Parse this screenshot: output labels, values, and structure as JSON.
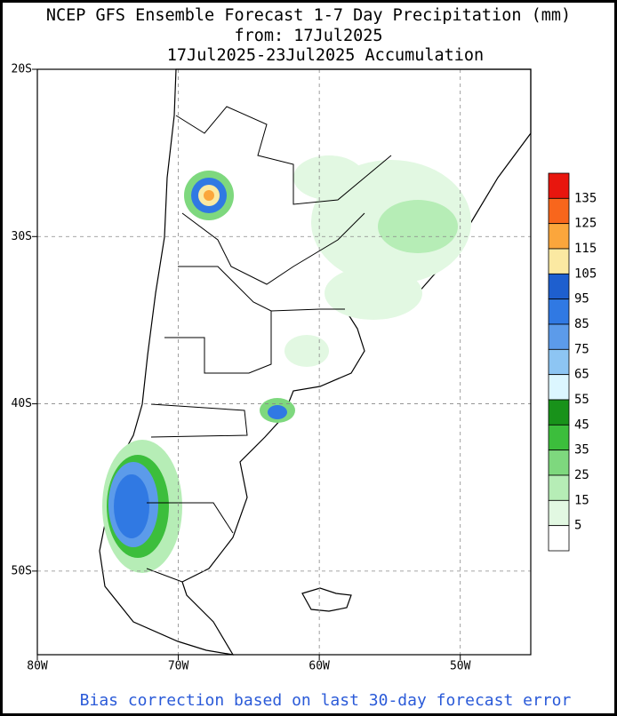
{
  "header": {
    "title": "NCEP GFS Ensemble Forecast 1-7 Day Precipitation (mm)",
    "subtitle": "from: 17Jul2025",
    "period": "17Jul2025-23Jul2025 Accumulation"
  },
  "map": {
    "lonlim": [
      -80,
      -45
    ],
    "latlim": [
      -55,
      -20
    ],
    "lat_ticks": [
      {
        "value": -20,
        "label": "20S"
      },
      {
        "value": -30,
        "label": "30S"
      },
      {
        "value": -40,
        "label": "40S"
      },
      {
        "value": -50,
        "label": "50S"
      }
    ],
    "lon_ticks": [
      {
        "value": -80,
        "label": "80W"
      },
      {
        "value": -70,
        "label": "70W"
      },
      {
        "value": -60,
        "label": "60W"
      },
      {
        "value": -50,
        "label": "50W"
      }
    ]
  },
  "legend": {
    "levels": [
      135,
      125,
      115,
      105,
      95,
      85,
      75,
      65,
      55,
      45,
      35,
      25,
      15,
      5
    ],
    "colors": [
      "#e8160e",
      "#f8661c",
      "#fba63c",
      "#fbe9a2",
      "#1e5fcf",
      "#3079e3",
      "#5c9bea",
      "#8dc5f3",
      "#dcf6ff",
      "#18921a",
      "#3cbe3c",
      "#7ed87e",
      "#b6edb6",
      "#e2f8e2",
      "#ffffff"
    ]
  },
  "footer": "Bias correction based on last 30-day forecast error"
}
